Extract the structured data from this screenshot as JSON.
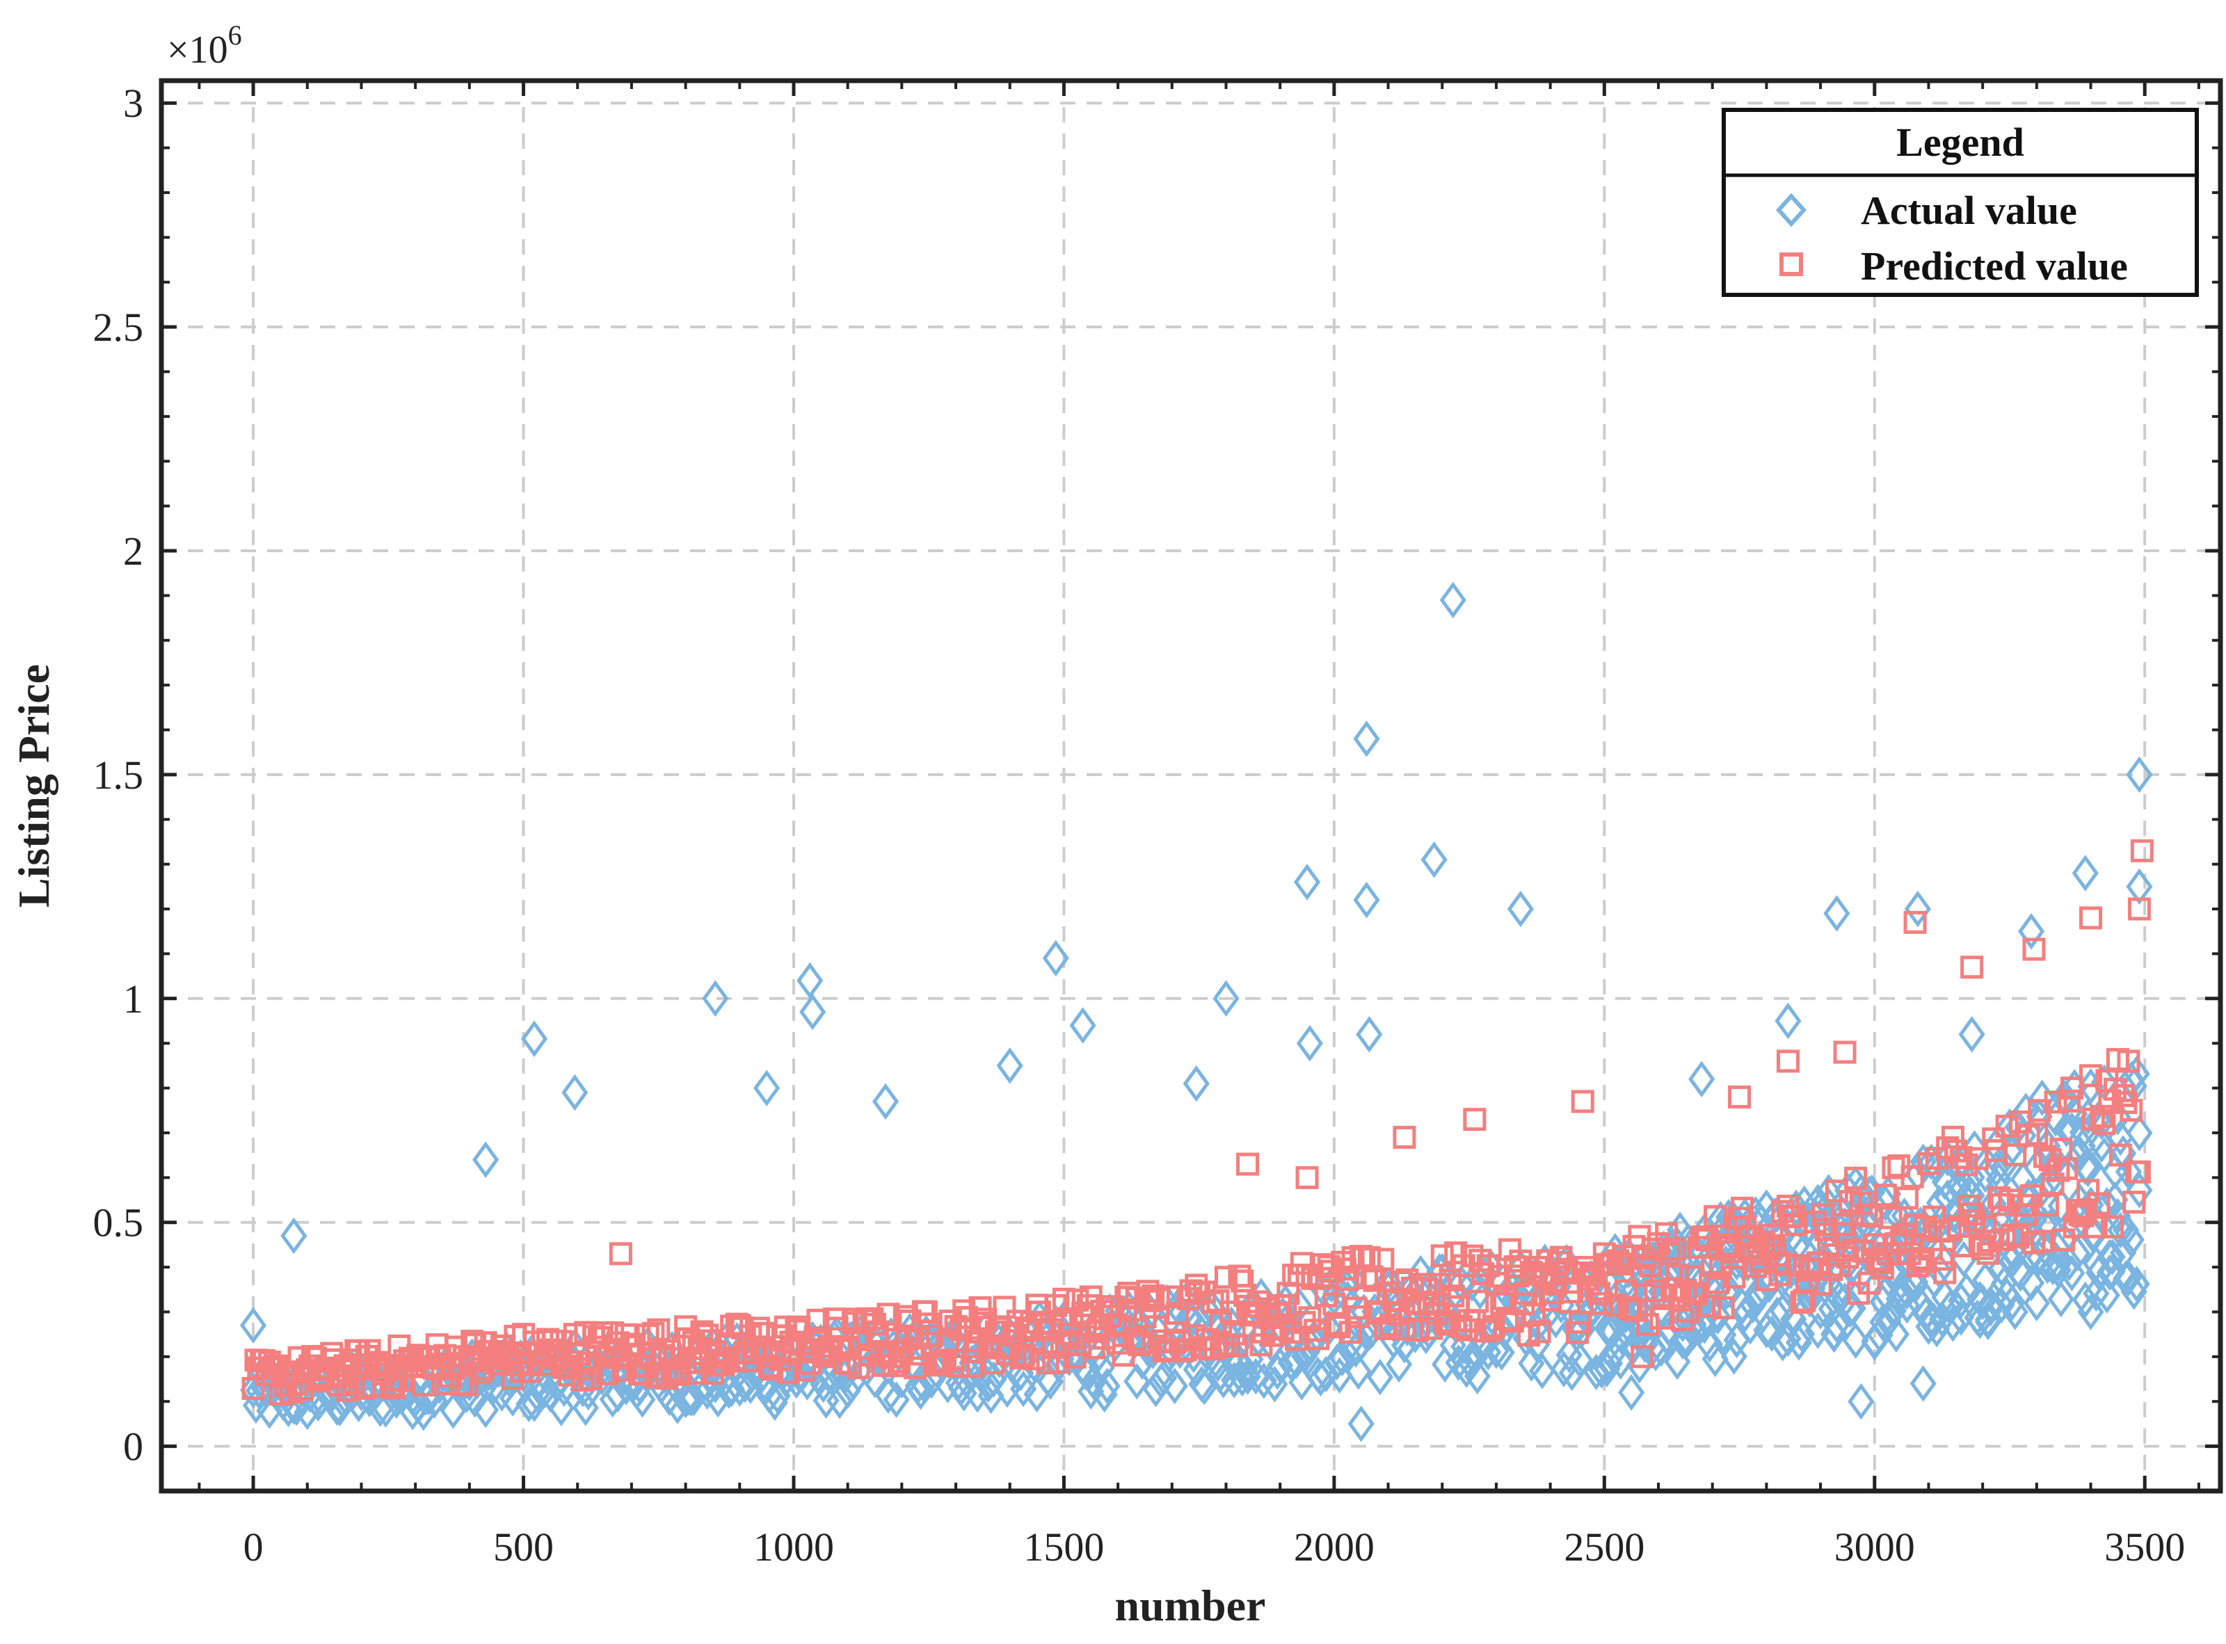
{
  "chart_data": {
    "type": "scatter",
    "title": "",
    "xlabel": "number",
    "ylabel": "Listing Price",
    "y_multiplier_label": "×10",
    "y_multiplier_exponent": "6",
    "xlim": [
      -170,
      3640
    ],
    "ylim": [
      -0.1,
      3.05
    ],
    "x_ticks": [
      0,
      500,
      1000,
      1500,
      2000,
      2500,
      3000,
      3500
    ],
    "x_tick_labels": [
      "0",
      "500",
      "1000",
      "1500",
      "2000",
      "2500",
      "3000",
      "3500"
    ],
    "y_ticks": [
      0,
      0.5,
      1,
      1.5,
      2,
      2.5,
      3
    ],
    "y_tick_labels": [
      "0",
      "0.5",
      "1",
      "1.5",
      "2",
      "2.5",
      "3"
    ],
    "grid": true,
    "grid_style": "dashed",
    "legend": {
      "title": "Legend",
      "position": "top-right"
    },
    "colors": {
      "actual": "#7ab4e0",
      "predicted": "#f47f7f",
      "axis": "#222222",
      "grid": "#cccccc"
    },
    "series": [
      {
        "name": "Actual value",
        "marker": "diamond",
        "color": "#7ab4e0",
        "trend": [
          [
            0,
            0.11
          ],
          [
            500,
            0.15
          ],
          [
            1000,
            0.17
          ],
          [
            1500,
            0.2
          ],
          [
            2000,
            0.26
          ],
          [
            2500,
            0.3
          ],
          [
            3000,
            0.42
          ],
          [
            3500,
            0.62
          ]
        ],
        "highlights": [
          [
            0,
            0.27
          ],
          [
            75,
            0.47
          ],
          [
            430,
            0.64
          ],
          [
            520,
            0.91
          ],
          [
            595,
            0.79
          ],
          [
            855,
            1.0
          ],
          [
            950,
            0.8
          ],
          [
            1030,
            1.04
          ],
          [
            1035,
            0.97
          ],
          [
            1170,
            0.77
          ],
          [
            1400,
            0.85
          ],
          [
            1485,
            1.09
          ],
          [
            1535,
            0.94
          ],
          [
            1745,
            0.81
          ],
          [
            1800,
            1.0
          ],
          [
            1950,
            1.26
          ],
          [
            1955,
            0.9
          ],
          [
            2060,
            1.58
          ],
          [
            2060,
            1.22
          ],
          [
            2065,
            0.92
          ],
          [
            2185,
            1.31
          ],
          [
            2220,
            1.89
          ],
          [
            2345,
            1.2
          ],
          [
            2550,
            0.12
          ],
          [
            2680,
            0.82
          ],
          [
            2840,
            0.95
          ],
          [
            2930,
            1.19
          ],
          [
            2975,
            0.1
          ],
          [
            3080,
            1.2
          ],
          [
            3090,
            0.14
          ],
          [
            3180,
            0.92
          ],
          [
            3290,
            1.15
          ],
          [
            3390,
            1.28
          ],
          [
            3400,
            0.3
          ],
          [
            3490,
            1.5
          ],
          [
            3490,
            1.25
          ],
          [
            2050,
            0.05
          ]
        ]
      },
      {
        "name": "Predicted value",
        "marker": "square",
        "color": "#f47f7f",
        "trend": [
          [
            0,
            0.15
          ],
          [
            500,
            0.2
          ],
          [
            1000,
            0.22
          ],
          [
            1500,
            0.26
          ],
          [
            2000,
            0.33
          ],
          [
            2500,
            0.35
          ],
          [
            3000,
            0.48
          ],
          [
            3500,
            0.7
          ]
        ],
        "highlights": [
          [
            680,
            0.43
          ],
          [
            1840,
            0.63
          ],
          [
            1950,
            0.6
          ],
          [
            2130,
            0.69
          ],
          [
            2260,
            0.73
          ],
          [
            2460,
            0.77
          ],
          [
            2750,
            0.78
          ],
          [
            2840,
            0.86
          ],
          [
            2945,
            0.88
          ],
          [
            3075,
            1.17
          ],
          [
            3180,
            1.07
          ],
          [
            3295,
            1.11
          ],
          [
            3400,
            1.18
          ],
          [
            3495,
            1.33
          ],
          [
            3490,
            1.2
          ],
          [
            2570,
            0.2
          ]
        ]
      }
    ]
  }
}
